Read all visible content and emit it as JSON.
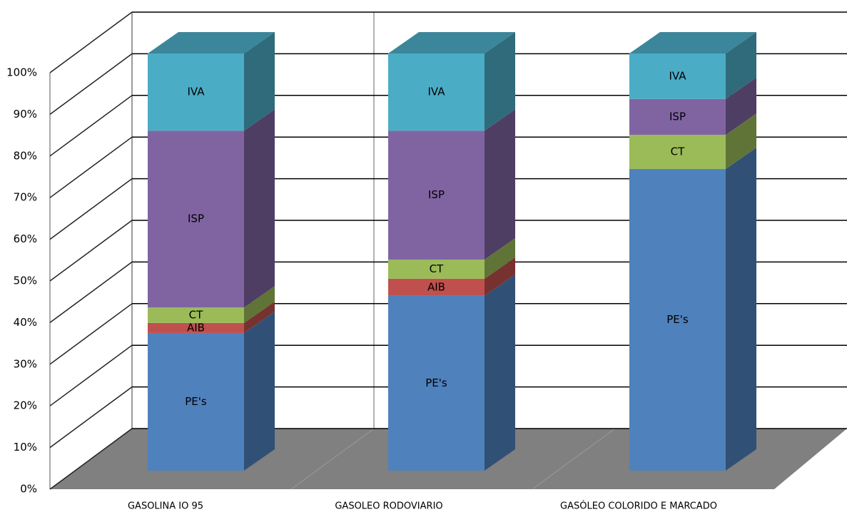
{
  "chart_data": {
    "type": "bar3d",
    "categories": [
      "GASOLINA  IO 95",
      "GASOLEO RODOVIARIO",
      "GASÓLEO COLORIDO E MARCADO"
    ],
    "series": [
      {
        "name": "PE's",
        "color": "#4f81bd",
        "values": [
          33,
          41.9,
          72.3
        ]
      },
      {
        "name": "AIB",
        "color": "#c0504d",
        "values": [
          2.4,
          4.1,
          0
        ]
      },
      {
        "name": "CT",
        "color": "#9bbb59",
        "values": [
          3.7,
          4.6,
          8.2
        ]
      },
      {
        "name": "ISP",
        "color": "#8064a2",
        "values": [
          42.4,
          30.9,
          8.6
        ]
      },
      {
        "name": "IVA",
        "color": "#4bacc6",
        "values": [
          18.5,
          18.5,
          10.9
        ]
      }
    ],
    "ylim": [
      0,
      100
    ],
    "yticks": [
      {
        "value": 0,
        "label": "0%"
      },
      {
        "value": 10,
        "label": "10%"
      },
      {
        "value": 20,
        "label": "20%"
      },
      {
        "value": 30,
        "label": "30%"
      },
      {
        "value": 40,
        "label": "40%"
      },
      {
        "value": 50,
        "label": "50%"
      },
      {
        "value": 60,
        "label": "60%"
      },
      {
        "value": 70,
        "label": "70%"
      },
      {
        "value": 80,
        "label": "80%"
      },
      {
        "value": 90,
        "label": "90%"
      },
      {
        "value": 100,
        "label": "100%"
      }
    ],
    "grid": true
  }
}
